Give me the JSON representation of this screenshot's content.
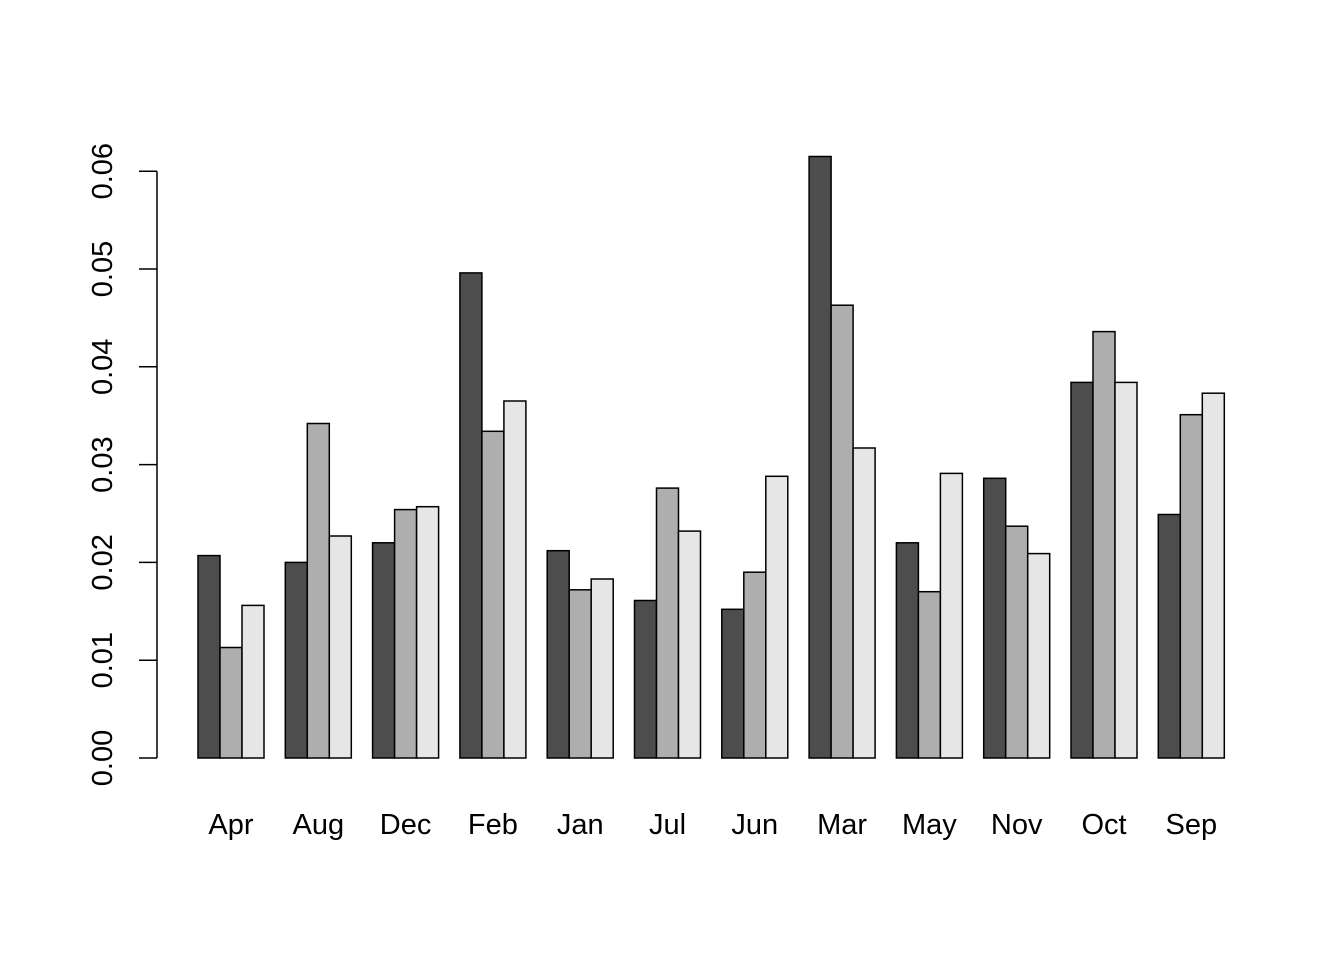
{
  "chart_data": {
    "type": "bar",
    "categories": [
      "Apr",
      "Aug",
      "Dec",
      "Feb",
      "Jan",
      "Jul",
      "Jun",
      "Mar",
      "May",
      "Nov",
      "Oct",
      "Sep"
    ],
    "series": [
      {
        "color": "#4d4d4d",
        "values": [
          0.0207,
          0.02,
          0.022,
          0.0496,
          0.0212,
          0.0161,
          0.0152,
          0.0615,
          0.022,
          0.0286,
          0.0384,
          0.0249
        ]
      },
      {
        "color": "#aeaeae",
        "values": [
          0.0113,
          0.0342,
          0.0254,
          0.0334,
          0.0172,
          0.0276,
          0.019,
          0.0463,
          0.017,
          0.0237,
          0.0436,
          0.0351
        ]
      },
      {
        "color": "#e6e6e6",
        "values": [
          0.0156,
          0.0227,
          0.0257,
          0.0365,
          0.0183,
          0.0232,
          0.0288,
          0.0317,
          0.0291,
          0.0209,
          0.0384,
          0.0373
        ]
      }
    ],
    "yticks": [
      "0.00",
      "0.01",
      "0.02",
      "0.03",
      "0.04",
      "0.05",
      "0.06"
    ],
    "ylim": [
      0,
      0.06
    ],
    "title": "",
    "xlabel": "",
    "ylabel": "",
    "grid": false,
    "legend": "none"
  }
}
